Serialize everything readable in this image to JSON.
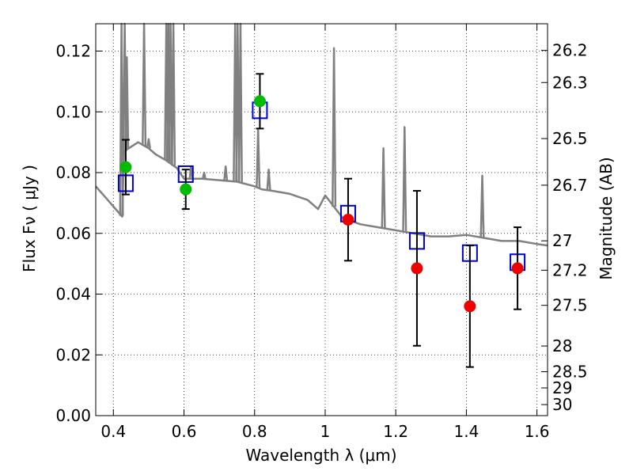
{
  "chart_data": {
    "type": "scatter",
    "title": "",
    "xlabel": "Wavelength  λ (μm)",
    "ylabel": "Flux  Fν  ( μJy )",
    "ylabel_right": "Magnitude (AB)",
    "xlim": [
      0.35,
      1.63
    ],
    "ylim": [
      0.0,
      0.129
    ],
    "grid": true,
    "grid_style": "dotted",
    "x_ticks": [
      0.4,
      0.6,
      0.8,
      1.0,
      1.2,
      1.4,
      1.6
    ],
    "x_tick_labels": [
      "0.4",
      "0.6",
      "0.8",
      "1",
      "1.2",
      "1.4",
      "1.6"
    ],
    "y_ticks": [
      0.0,
      0.02,
      0.04,
      0.06,
      0.08,
      0.1,
      0.12
    ],
    "y_tick_labels": [
      "0.00",
      "0.02",
      "0.04",
      "0.06",
      "0.08",
      "0.10",
      "0.12"
    ],
    "right_ticks": [
      {
        "mag": 26.2,
        "label": "26.2"
      },
      {
        "mag": 26.3,
        "label": "26.3"
      },
      {
        "mag": 26.5,
        "label": "26.5"
      },
      {
        "mag": 26.7,
        "label": "26.7"
      },
      {
        "mag": 27.0,
        "label": "27"
      },
      {
        "mag": 27.2,
        "label": "27.2"
      },
      {
        "mag": 27.5,
        "label": "27.5"
      },
      {
        "mag": 28.0,
        "label": "28"
      },
      {
        "mag": 28.5,
        "label": "28.5"
      },
      {
        "mag": 29.0,
        "label": "29"
      },
      {
        "mag": 30.0,
        "label": "30"
      }
    ],
    "series": [
      {
        "kind": "spectrum",
        "color": "#808080",
        "continuum": [
          [
            0.35,
            0.0755
          ],
          [
            0.38,
            0.0715
          ],
          [
            0.41,
            0.0675
          ],
          [
            0.425,
            0.0655
          ],
          [
            0.43,
            0.087
          ],
          [
            0.45,
            0.0885
          ],
          [
            0.47,
            0.09
          ],
          [
            0.5,
            0.088
          ],
          [
            0.52,
            0.086
          ],
          [
            0.55,
            0.084
          ],
          [
            0.58,
            0.0815
          ],
          [
            0.6,
            0.078
          ],
          [
            0.65,
            0.078
          ],
          [
            0.7,
            0.0775
          ],
          [
            0.75,
            0.077
          ],
          [
            0.8,
            0.0755
          ],
          [
            0.82,
            0.0745
          ],
          [
            0.85,
            0.074
          ],
          [
            0.9,
            0.073
          ],
          [
            0.95,
            0.071
          ],
          [
            0.98,
            0.068
          ],
          [
            1.0,
            0.0725
          ],
          [
            1.05,
            0.065
          ],
          [
            1.1,
            0.063
          ],
          [
            1.15,
            0.062
          ],
          [
            1.2,
            0.061
          ],
          [
            1.25,
            0.06
          ],
          [
            1.3,
            0.059
          ],
          [
            1.35,
            0.059
          ],
          [
            1.4,
            0.0595
          ],
          [
            1.45,
            0.0585
          ],
          [
            1.5,
            0.0575
          ],
          [
            1.55,
            0.0575
          ],
          [
            1.6,
            0.0565
          ],
          [
            1.63,
            0.056
          ]
        ],
        "lines": [
          [
            0.423,
            0.129
          ],
          [
            0.432,
            0.129
          ],
          [
            0.438,
            0.118
          ],
          [
            0.487,
            0.129
          ],
          [
            0.5,
            0.091
          ],
          [
            0.55,
            0.129
          ],
          [
            0.556,
            0.129
          ],
          [
            0.562,
            0.129
          ],
          [
            0.57,
            0.129
          ],
          [
            0.62,
            0.082
          ],
          [
            0.657,
            0.08
          ],
          [
            0.718,
            0.082
          ],
          [
            0.745,
            0.129
          ],
          [
            0.752,
            0.129
          ],
          [
            0.76,
            0.129
          ],
          [
            0.81,
            0.094
          ],
          [
            0.84,
            0.081
          ],
          [
            1.025,
            0.121
          ],
          [
            1.165,
            0.088
          ],
          [
            1.225,
            0.095
          ],
          [
            1.445,
            0.079
          ]
        ]
      },
      {
        "kind": "model",
        "name": "",
        "marker": "open-square",
        "color": "#0000cc",
        "x": [
          0.435,
          0.605,
          0.815,
          1.065,
          1.26,
          1.41,
          1.545
        ],
        "y": [
          0.0765,
          0.0795,
          0.1005,
          0.0665,
          0.0575,
          0.0535,
          0.0505
        ]
      },
      {
        "kind": "observed",
        "name": "",
        "marker": "filled-circle",
        "x": [
          0.435,
          0.605,
          0.815,
          1.065,
          1.26,
          1.41,
          1.545
        ],
        "y": [
          0.0818,
          0.0745,
          0.1035,
          0.0645,
          0.0485,
          0.036,
          0.0485
        ],
        "yerr": [
          0.009,
          0.0065,
          0.009,
          0.0135,
          0.0255,
          0.02,
          0.0135
        ],
        "colors": [
          "#00bb00",
          "#00bb00",
          "#00bb00",
          "#ee0000",
          "#ee0000",
          "#ee0000",
          "#ee0000"
        ]
      }
    ]
  }
}
